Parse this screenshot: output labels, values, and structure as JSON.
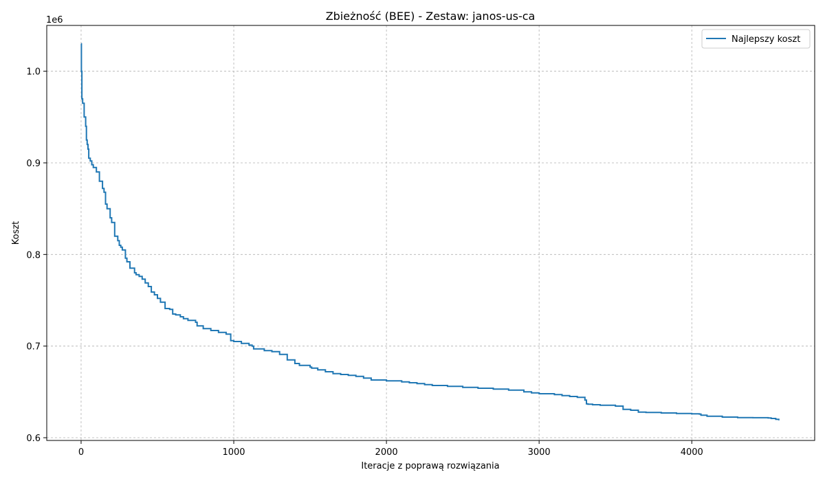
{
  "chart_data": {
    "type": "line",
    "title": "Zbieżność (BEE) - Zestaw: janos-us-ca",
    "xlabel": "Iteracje z poprawą rozwiązania",
    "ylabel": "Koszt",
    "y_scale_label": "1e6",
    "xlim": [
      -225,
      4805
    ],
    "ylim": [
      597000,
      1050000
    ],
    "x_ticks": [
      0,
      1000,
      2000,
      3000,
      4000
    ],
    "x_tick_labels": [
      "0",
      "1000",
      "2000",
      "3000",
      "4000"
    ],
    "y_ticks": [
      600000,
      700000,
      800000,
      900000,
      1000000
    ],
    "y_tick_labels": [
      "0.6",
      "0.7",
      "0.8",
      "0.9",
      "1.0"
    ],
    "grid": true,
    "legend_position": "top-right",
    "colors": {
      "series": "#1f77b4",
      "grid": "#b0b0b0"
    },
    "series": [
      {
        "name": "Najlepszy koszt",
        "x": [
          0,
          2,
          5,
          10,
          20,
          30,
          35,
          40,
          45,
          50,
          60,
          70,
          80,
          100,
          120,
          140,
          150,
          160,
          170,
          190,
          200,
          220,
          240,
          250,
          260,
          270,
          290,
          300,
          320,
          350,
          360,
          380,
          400,
          420,
          440,
          460,
          480,
          500,
          520,
          550,
          580,
          600,
          620,
          650,
          670,
          700,
          750,
          760,
          800,
          850,
          900,
          950,
          980,
          1000,
          1050,
          1100,
          1120,
          1130,
          1200,
          1250,
          1300,
          1350,
          1400,
          1430,
          1500,
          1510,
          1550,
          1600,
          1650,
          1700,
          1750,
          1800,
          1850,
          1900,
          2000,
          2100,
          2150,
          2200,
          2250,
          2300,
          2400,
          2500,
          2600,
          2700,
          2800,
          2900,
          2950,
          3000,
          3100,
          3150,
          3200,
          3250,
          3300,
          3310,
          3320,
          3350,
          3400,
          3500,
          3550,
          3600,
          3650,
          3700,
          3800,
          3900,
          4000,
          4050,
          4060,
          4100,
          4200,
          4300,
          4400,
          4500,
          4520,
          4550,
          4570
        ],
        "values": [
          1030000,
          1000000,
          970000,
          965000,
          950000,
          940000,
          925000,
          920000,
          915000,
          905000,
          902000,
          898000,
          895000,
          890000,
          880000,
          872000,
          868000,
          855000,
          850000,
          840000,
          835000,
          820000,
          815000,
          810000,
          808000,
          805000,
          796000,
          792000,
          785000,
          780000,
          778000,
          776000,
          773000,
          769000,
          765000,
          759000,
          756000,
          752000,
          748000,
          741000,
          740000,
          735000,
          734000,
          732000,
          730000,
          728000,
          726000,
          722000,
          719000,
          717000,
          715000,
          713000,
          706000,
          705000,
          703000,
          701000,
          700000,
          697000,
          695000,
          694000,
          691000,
          685000,
          681000,
          679000,
          677000,
          676000,
          674000,
          672000,
          670000,
          669000,
          668000,
          667000,
          665000,
          663000,
          662000,
          661000,
          660000,
          659000,
          658000,
          657000,
          656000,
          655000,
          654000,
          653000,
          652000,
          650000,
          649000,
          648000,
          647000,
          646000,
          645000,
          644000,
          641000,
          637000,
          636500,
          636000,
          635500,
          634500,
          631000,
          630000,
          628000,
          627500,
          627000,
          626500,
          626000,
          625800,
          624500,
          623500,
          622500,
          622000,
          621800,
          621500,
          621000,
          620000,
          619000
        ]
      }
    ]
  }
}
